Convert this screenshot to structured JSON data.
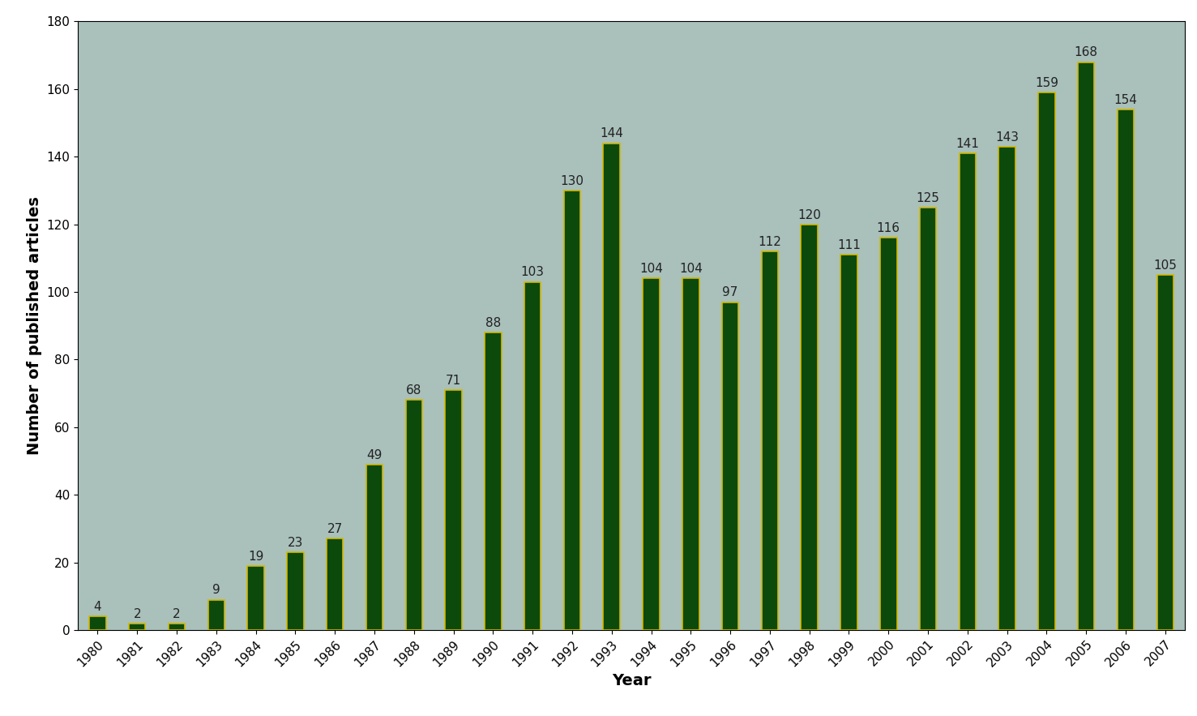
{
  "chart_data": {
    "type": "bar",
    "x_label": "Year",
    "y_label": "Number of published articles",
    "categories": [
      "1980",
      "1981",
      "1982",
      "1983",
      "1984",
      "1985",
      "1986",
      "1987",
      "1988",
      "1989",
      "1990",
      "1991",
      "1992",
      "1993",
      "1994",
      "1995",
      "1996",
      "1997",
      "1998",
      "1999",
      "2000",
      "2001",
      "2002",
      "2003",
      "2004",
      "2005",
      "2006",
      "2007"
    ],
    "values": [
      4,
      2,
      2,
      9,
      19,
      23,
      27,
      49,
      68,
      71,
      88,
      103,
      130,
      144,
      104,
      104,
      97,
      112,
      120,
      111,
      116,
      125,
      141,
      143,
      159,
      168,
      154,
      105
    ],
    "color": "#0b4a0b",
    "ylim": [
      0,
      180
    ],
    "yticks": [
      0,
      20,
      40,
      60,
      80,
      100,
      120,
      140,
      160,
      180
    ],
    "grid": false,
    "data_labels": true
  }
}
